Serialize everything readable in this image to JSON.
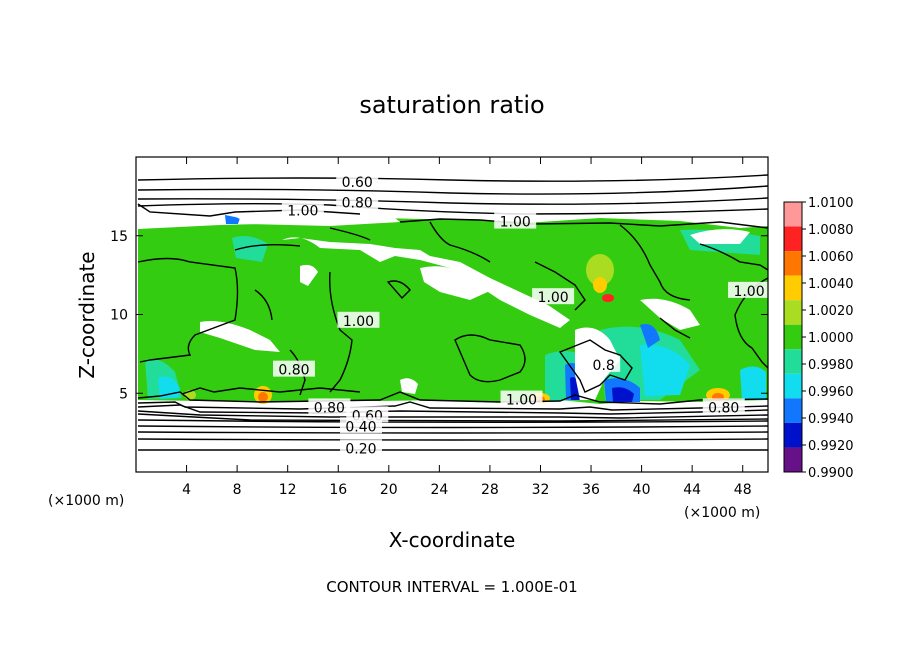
{
  "chart_data": {
    "type": "heatmap",
    "title": "saturation ratio",
    "xlabel": "X-coordinate",
    "ylabel": "Z-coordinate",
    "x_unit_label": "(×1000 m)",
    "z_unit_label": "(×1000 m)",
    "footer": "CONTOUR INTERVAL = 1.000E-01",
    "xlim": [
      0,
      50
    ],
    "ylim": [
      0,
      20
    ],
    "x_ticks": [
      "4",
      "8",
      "12",
      "16",
      "20",
      "24",
      "28",
      "32",
      "36",
      "40",
      "44",
      "48"
    ],
    "x_tick_values": [
      4,
      8,
      12,
      16,
      20,
      24,
      28,
      32,
      36,
      40,
      44,
      48
    ],
    "y_ticks": [
      "5",
      "10",
      "15"
    ],
    "y_tick_values": [
      5,
      10,
      15
    ],
    "colorbar": {
      "labels": [
        "1.0100",
        "1.0080",
        "1.0060",
        "1.0040",
        "1.0020",
        "1.0000",
        "0.9980",
        "0.9960",
        "0.9940",
        "0.9920",
        "0.9900"
      ],
      "colors": [
        "#ff9999",
        "#ff2222",
        "#ff7700",
        "#ffcc00",
        "#aadd22",
        "#33cc11",
        "#22dd99",
        "#11ddee",
        "#1177ff",
        "#0011cc",
        "#661188"
      ]
    },
    "contour_labels": [
      {
        "text": "0.60",
        "x": 17.5,
        "z": 18.4
      },
      {
        "text": "0.80",
        "x": 17.5,
        "z": 17.1
      },
      {
        "text": "1.00",
        "x": 13.2,
        "z": 16.6
      },
      {
        "text": "1.00",
        "x": 30.0,
        "z": 15.9
      },
      {
        "text": "1.00",
        "x": 33.0,
        "z": 11.1
      },
      {
        "text": "1.00",
        "x": 48.5,
        "z": 11.5
      },
      {
        "text": "1.00",
        "x": 17.6,
        "z": 9.6
      },
      {
        "text": "0.80",
        "x": 12.5,
        "z": 6.5
      },
      {
        "text": "1.00",
        "x": 30.5,
        "z": 4.6
      },
      {
        "text": "0.80",
        "x": 15.3,
        "z": 4.1
      },
      {
        "text": "0.60",
        "x": 18.3,
        "z": 3.6
      },
      {
        "text": "0.40",
        "x": 17.8,
        "z": 2.9
      },
      {
        "text": "0.20",
        "x": 17.8,
        "z": 1.5
      },
      {
        "text": "0.80",
        "x": 46.5,
        "z": 4.1
      },
      {
        "text": "0.8",
        "x": 37.0,
        "z": 6.8
      }
    ]
  }
}
